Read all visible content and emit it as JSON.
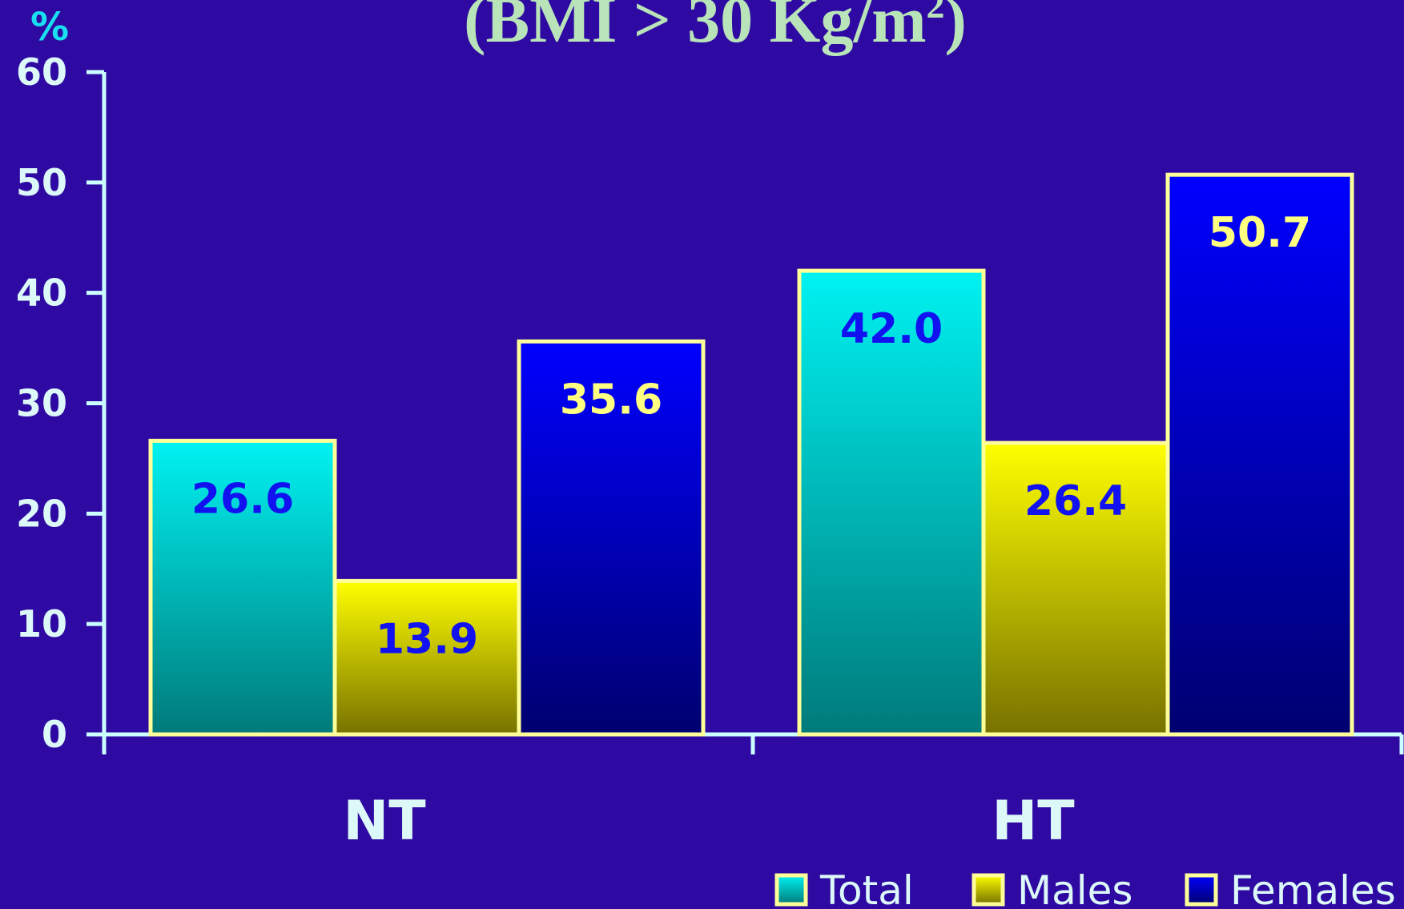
{
  "chart_data": {
    "type": "bar",
    "title": "(BMI > 30 Kg/m",
    "title_superscript": "2",
    "title_close": ")",
    "ylabel": "%",
    "xlabel": "",
    "categories": [
      "NT",
      "HT"
    ],
    "ylim": [
      0,
      60
    ],
    "yticks": [
      0,
      10,
      20,
      30,
      40,
      50,
      60
    ],
    "series": [
      {
        "name": "Total",
        "values": [
          26.6,
          42.0
        ],
        "labels": [
          "26.6",
          "42.0"
        ],
        "color_top": "#00f2f2",
        "color_bottom": "#007a7a",
        "label_color": "#1212f0"
      },
      {
        "name": "Males",
        "values": [
          13.9,
          26.4
        ],
        "labels": [
          "13.9",
          "26.4"
        ],
        "color_top": "#ffff00",
        "color_bottom": "#777200",
        "label_color": "#1212f0"
      },
      {
        "name": "Females",
        "values": [
          35.6,
          50.7
        ],
        "labels": [
          "35.6",
          "50.7"
        ],
        "color_top": "#0000ff",
        "color_bottom": "#000070",
        "label_color": "#ffff80"
      }
    ],
    "bar_outline": "#ffff99",
    "axis_color": "#ccffff",
    "legend_position": "bottom-right",
    "grid": false
  }
}
